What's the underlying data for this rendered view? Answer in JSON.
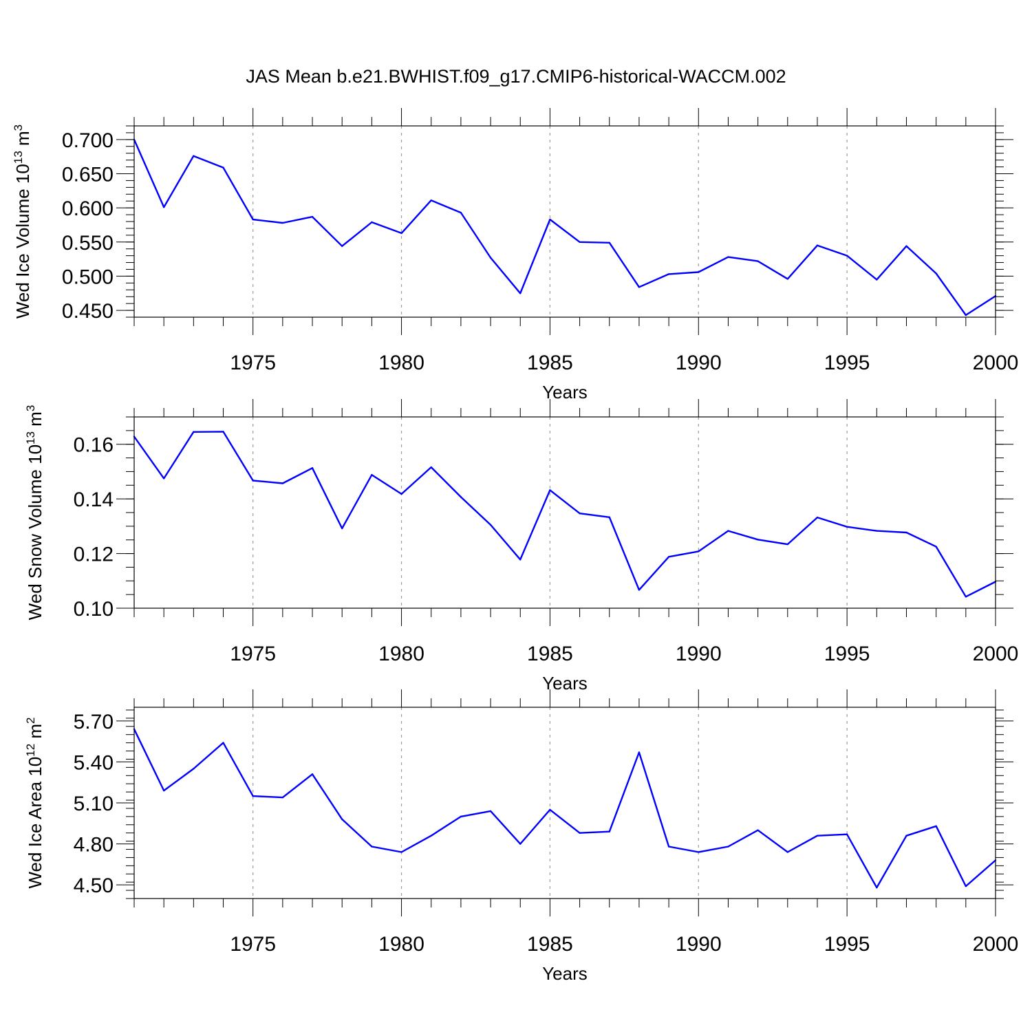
{
  "title": "JAS Mean b.e21.BWHIST.f09_g17.CMIP6-historical-WACCM.002",
  "colors": {
    "line": "#0000ff",
    "axis": "#000000",
    "grid": "#9a9a9a"
  },
  "chart_data": [
    {
      "type": "line",
      "ylabel_main": "Wed Ice Volume 10",
      "ylabel_exp": "13",
      "ylabel_unit": " m",
      "ylabel_unit_exp": "3",
      "xlabel": "Years",
      "xlim": [
        1971,
        2000
      ],
      "ylim": [
        0.44,
        0.72
      ],
      "x_ticks": [
        1975,
        1980,
        1985,
        1990,
        1995,
        2000
      ],
      "x_tick_labels": [
        "1975",
        "1980",
        "1985",
        "1990",
        "1995",
        "2000"
      ],
      "y_ticks": [
        0.45,
        0.5,
        0.55,
        0.6,
        0.65,
        0.7
      ],
      "y_tick_labels": [
        "0.450",
        "0.500",
        "0.550",
        "0.600",
        "0.650",
        "0.700"
      ],
      "y_minor_step": 0.01,
      "x": [
        1971,
        1972,
        1973,
        1974,
        1975,
        1976,
        1977,
        1978,
        1979,
        1980,
        1981,
        1982,
        1983,
        1984,
        1985,
        1986,
        1987,
        1988,
        1989,
        1990,
        1991,
        1992,
        1993,
        1994,
        1995,
        1996,
        1997,
        1998,
        1999,
        2000
      ],
      "values": [
        0.7,
        0.601,
        0.676,
        0.659,
        0.583,
        0.578,
        0.587,
        0.544,
        0.579,
        0.563,
        0.611,
        0.593,
        0.527,
        0.475,
        0.583,
        0.55,
        0.549,
        0.484,
        0.503,
        0.506,
        0.528,
        0.522,
        0.496,
        0.545,
        0.53,
        0.495,
        0.544,
        0.504,
        0.443,
        0.471
      ]
    },
    {
      "type": "line",
      "ylabel_main": "Wed Snow Volume 10",
      "ylabel_exp": "13",
      "ylabel_unit": " m",
      "ylabel_unit_exp": "3",
      "xlabel": "Years",
      "xlim": [
        1971,
        2000
      ],
      "ylim": [
        0.1,
        0.17
      ],
      "x_ticks": [
        1975,
        1980,
        1985,
        1990,
        1995,
        2000
      ],
      "x_tick_labels": [
        "1975",
        "1980",
        "1985",
        "1990",
        "1995",
        "2000"
      ],
      "y_ticks": [
        0.1,
        0.12,
        0.14,
        0.16
      ],
      "y_tick_labels": [
        "0.10",
        "0.12",
        "0.14",
        "0.16"
      ],
      "y_minor_step": 0.005,
      "x": [
        1971,
        1972,
        1973,
        1974,
        1975,
        1976,
        1977,
        1978,
        1979,
        1980,
        1981,
        1982,
        1983,
        1984,
        1985,
        1986,
        1987,
        1988,
        1989,
        1990,
        1991,
        1992,
        1993,
        1994,
        1995,
        1996,
        1997,
        1998,
        1999,
        2000
      ],
      "values": [
        0.1628,
        0.1475,
        0.1645,
        0.1646,
        0.1467,
        0.1457,
        0.1513,
        0.1292,
        0.1488,
        0.1418,
        0.1516,
        0.1407,
        0.1305,
        0.1178,
        0.1432,
        0.1347,
        0.1333,
        0.1067,
        0.1188,
        0.1208,
        0.1283,
        0.1251,
        0.1234,
        0.1332,
        0.1298,
        0.1283,
        0.1277,
        0.1225,
        0.1042,
        0.1097
      ]
    },
    {
      "type": "line",
      "ylabel_main": "Wed Ice Area 10",
      "ylabel_exp": "12",
      "ylabel_unit": " m",
      "ylabel_unit_exp": "2",
      "xlabel": "Years",
      "xlim": [
        1971,
        2000
      ],
      "ylim": [
        4.4,
        5.8
      ],
      "x_ticks": [
        1975,
        1980,
        1985,
        1990,
        1995,
        2000
      ],
      "x_tick_labels": [
        "1975",
        "1980",
        "1985",
        "1990",
        "1995",
        "2000"
      ],
      "y_ticks": [
        4.5,
        4.8,
        5.1,
        5.4,
        5.7
      ],
      "y_tick_labels": [
        "4.50",
        "4.80",
        "5.10",
        "5.40",
        "5.70"
      ],
      "y_minor_step": 0.06,
      "x": [
        1971,
        1972,
        1973,
        1974,
        1975,
        1976,
        1977,
        1978,
        1979,
        1980,
        1981,
        1982,
        1983,
        1984,
        1985,
        1986,
        1987,
        1988,
        1989,
        1990,
        1991,
        1992,
        1993,
        1994,
        1995,
        1996,
        1997,
        1998,
        1999,
        2000
      ],
      "values": [
        5.64,
        5.19,
        5.35,
        5.54,
        5.15,
        5.14,
        5.31,
        4.98,
        4.78,
        4.74,
        4.86,
        5.0,
        5.04,
        4.8,
        5.05,
        4.88,
        4.89,
        5.47,
        4.78,
        4.74,
        4.78,
        4.9,
        4.74,
        4.86,
        4.87,
        4.48,
        4.86,
        4.93,
        4.49,
        4.68
      ]
    }
  ]
}
